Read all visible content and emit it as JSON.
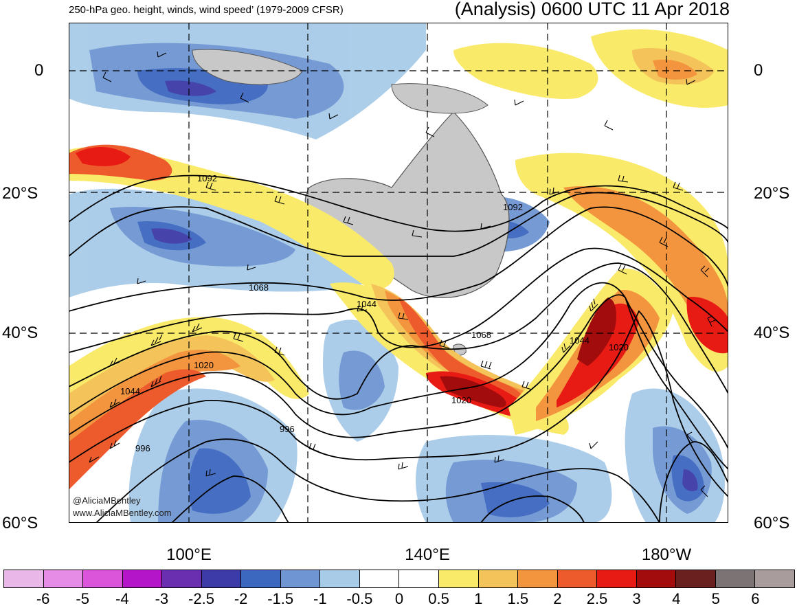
{
  "header": {
    "title_left": "250-hPa geo. height, winds, wind speed’ (1979-2009 CFSR)",
    "title_right": "(Analysis) 0600 UTC 11 Apr 2018"
  },
  "axes": {
    "lat_left": [
      "0",
      "20°S",
      "40°S",
      "60°S"
    ],
    "lat_right": [
      "0",
      "20°S",
      "40°S",
      "60°S"
    ],
    "lon": [
      "100°E",
      "140°E",
      "180°W"
    ]
  },
  "contour_labels": [
    "1092",
    "1092",
    "1068",
    "1044",
    "1068",
    "1044",
    "1020",
    "1020",
    "1044",
    "1020",
    "996",
    "996"
  ],
  "credits": {
    "line1": "@AliciaMBentley",
    "line2": "www.AliciaMBentley.com"
  },
  "colorbar": {
    "colors": [
      "#e9b8e9",
      "#e68ce6",
      "#db55db",
      "#b515c9",
      "#6a2eb0",
      "#3d3ba7",
      "#3d68c0",
      "#6f96d2",
      "#a8cbe8",
      "#ffffff",
      "#ffffff",
      "#faea6a",
      "#f4c45a",
      "#f3953f",
      "#ed5a2b",
      "#e81a14",
      "#a30c0c",
      "#6b2020",
      "#7c7474",
      "#a89c9c"
    ],
    "labels": [
      "-6",
      "-5",
      "-4",
      "-3",
      "-2.5",
      "-2",
      "-1.5",
      "-1",
      "-0.5",
      "0",
      "0.5",
      "1",
      "1.5",
      "2",
      "2.5",
      "3",
      "4",
      "5",
      "6"
    ]
  },
  "colors": {
    "land": "#c8c8c8",
    "coast": "#555555",
    "contour": "#000000"
  }
}
